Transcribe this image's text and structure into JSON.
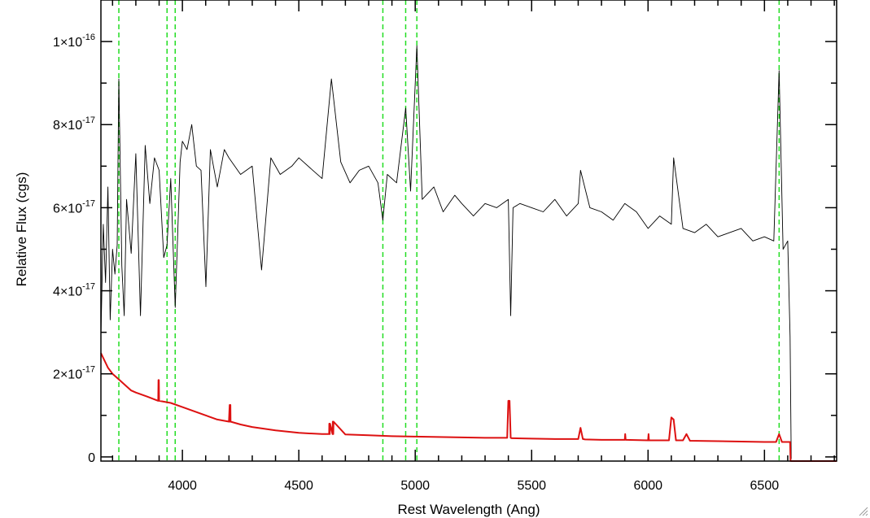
{
  "chart_data": {
    "type": "line",
    "title": "",
    "xlabel": "Rest Wavelength (Ang)",
    "ylabel": "Relative Flux (cgs)",
    "xlim": [
      3650,
      6810
    ],
    "ylim": [
      -1e-18,
      1.1e-16
    ],
    "x_ticks": [
      4000,
      4500,
      5000,
      5500,
      6000,
      6500
    ],
    "x_tick_labels": [
      "4000",
      "4500",
      "5000",
      "5500",
      "6000",
      "6500"
    ],
    "y_ticks": [
      0,
      2e-17,
      4e-17,
      6e-17,
      8e-17,
      1e-16
    ],
    "y_tick_labels": [
      {
        "mant": "0",
        "exp": ""
      },
      {
        "mant": "2×10",
        "exp": "-17"
      },
      {
        "mant": "4×10",
        "exp": "-17"
      },
      {
        "mant": "6×10",
        "exp": "-17"
      },
      {
        "mant": "8×10",
        "exp": "-17"
      },
      {
        "mant": "1×10",
        "exp": "-16"
      }
    ],
    "grid": false,
    "vertical_lines": {
      "style": "dashed",
      "color": "#22dd22",
      "x": [
        3727,
        3934,
        3969,
        4861,
        4959,
        5007,
        6563
      ]
    },
    "series": [
      {
        "color": "#000000",
        "x": [
          3650,
          3660,
          3670,
          3680,
          3690,
          3700,
          3710,
          3720,
          3727,
          3740,
          3750,
          3760,
          3780,
          3800,
          3820,
          3840,
          3860,
          3880,
          3900,
          3920,
          3934,
          3950,
          3969,
          3990,
          4000,
          4020,
          4040,
          4060,
          4080,
          4101,
          4120,
          4150,
          4180,
          4200,
          4250,
          4300,
          4340,
          4380,
          4420,
          4470,
          4500,
          4560,
          4600,
          4640,
          4680,
          4720,
          4760,
          4800,
          4840,
          4861,
          4880,
          4920,
          4959,
          4980,
          5007,
          5030,
          5080,
          5120,
          5170,
          5200,
          5250,
          5300,
          5350,
          5400,
          5410,
          5420,
          5450,
          5500,
          5550,
          5600,
          5650,
          5700,
          5710,
          5750,
          5800,
          5850,
          5900,
          5950,
          6000,
          6050,
          6100,
          6110,
          6150,
          6200,
          6250,
          6300,
          6350,
          6400,
          6450,
          6500,
          6540,
          6563,
          6580,
          6600,
          6610,
          6615
        ],
        "values": [
          2.9e-17,
          5.6e-17,
          4.2e-17,
          6.5e-17,
          3.3e-17,
          5e-17,
          4.4e-17,
          5.1e-17,
          9.1e-17,
          4.6e-17,
          3.4e-17,
          6.2e-17,
          4.9e-17,
          7.3e-17,
          3.4e-17,
          7.5e-17,
          6.1e-17,
          7.2e-17,
          6.9e-17,
          4.8e-17,
          5.1e-17,
          6.7e-17,
          3.6e-17,
          7.1e-17,
          7.6e-17,
          7.4e-17,
          8e-17,
          7e-17,
          6.9e-17,
          4.1e-17,
          7.4e-17,
          6.5e-17,
          7.4e-17,
          7.2e-17,
          6.8e-17,
          7e-17,
          4.5e-17,
          7.2e-17,
          6.8e-17,
          7e-17,
          7.2e-17,
          6.9e-17,
          6.7e-17,
          9.1e-17,
          7.1e-17,
          6.6e-17,
          6.9e-17,
          7e-17,
          6.6e-17,
          5.7e-17,
          6.8e-17,
          6.6e-17,
          8.4e-17,
          6.4e-17,
          9.9e-17,
          6.2e-17,
          6.5e-17,
          5.9e-17,
          6.3e-17,
          6.1e-17,
          5.8e-17,
          6.1e-17,
          6e-17,
          6.2e-17,
          3.4e-17,
          6e-17,
          6.1e-17,
          6e-17,
          5.9e-17,
          6.2e-17,
          5.8e-17,
          6.1e-17,
          6.9e-17,
          6e-17,
          5.9e-17,
          5.7e-17,
          6.1e-17,
          5.9e-17,
          5.5e-17,
          5.8e-17,
          5.6e-17,
          7.2e-17,
          5.5e-17,
          5.4e-17,
          5.6e-17,
          5.3e-17,
          5.4e-17,
          5.5e-17,
          5.2e-17,
          5.3e-17,
          5.2e-17,
          9.3e-17,
          5e-17,
          5.2e-17,
          2.9e-17,
          -5e-19
        ]
      },
      {
        "color": "#dd1111",
        "x": [
          3650,
          3680,
          3700,
          3720,
          3750,
          3780,
          3800,
          3850,
          3896,
          3897,
          3899,
          3900,
          3950,
          4000,
          4050,
          4100,
          4150,
          4200,
          4203,
          4204,
          4206,
          4207,
          4250,
          4300,
          4400,
          4500,
          4600,
          4630,
          4631,
          4633,
          4634,
          4645,
          4646,
          4648,
          4649,
          4700,
          4800,
          4900,
          5000,
          5100,
          5200,
          5300,
          5395,
          5400,
          5405,
          5410,
          5415,
          5500,
          5600,
          5700,
          5710,
          5720,
          5730,
          5800,
          5900,
          5902,
          5904,
          6000,
          6002,
          6004,
          6090,
          6100,
          6110,
          6120,
          6150,
          6165,
          6180,
          6300,
          6400,
          6500,
          6550,
          6563,
          6575,
          6610,
          6612,
          6810
        ],
        "values": [
          2.5e-17,
          2.15e-17,
          2e-17,
          1.9e-17,
          1.75e-17,
          1.6e-17,
          1.55e-17,
          1.45e-17,
          1.35e-17,
          1.85e-17,
          1.85e-17,
          1.35e-17,
          1.3e-17,
          1.2e-17,
          1.1e-17,
          1e-17,
          9e-18,
          8.5e-18,
          1.25e-17,
          8.5e-18,
          1.25e-17,
          8.5e-18,
          7.8e-18,
          7.2e-18,
          6.4e-18,
          5.8e-18,
          5.5e-18,
          5.5e-18,
          8e-18,
          5.5e-18,
          8e-18,
          5.5e-18,
          8.5e-18,
          5.5e-18,
          8.5e-18,
          5.4e-18,
          5.2e-18,
          5e-18,
          4.9e-18,
          4.8e-18,
          4.7e-18,
          4.6e-18,
          4.6e-18,
          1.35e-17,
          1.35e-17,
          4.6e-18,
          4.5e-18,
          4.4e-18,
          4.3e-18,
          4.3e-18,
          7e-18,
          4.3e-18,
          4.2e-18,
          4.1e-18,
          4.1e-18,
          5.5e-18,
          4.1e-18,
          4e-18,
          5.5e-18,
          4e-18,
          4e-18,
          9.5e-18,
          9e-18,
          4e-18,
          4e-18,
          5.5e-18,
          3.9e-18,
          3.8e-18,
          3.7e-18,
          3.6e-18,
          3.6e-18,
          5.5e-18,
          3.6e-18,
          3.6e-18,
          -1e-18,
          -1e-18
        ]
      }
    ]
  }
}
